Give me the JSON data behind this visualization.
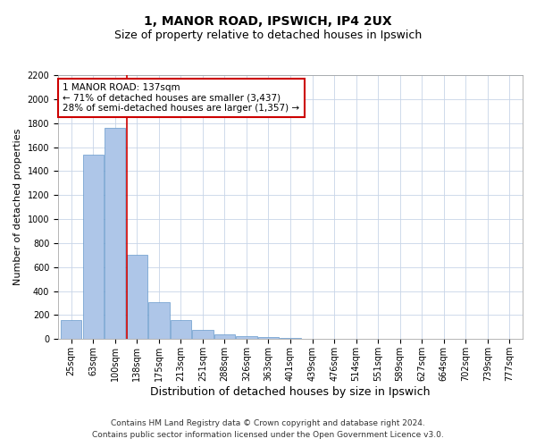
{
  "title_line1": "1, MANOR ROAD, IPSWICH, IP4 2UX",
  "title_line2": "Size of property relative to detached houses in Ipswich",
  "xlabel": "Distribution of detached houses by size in Ipswich",
  "ylabel": "Number of detached properties",
  "categories": [
    "25sqm",
    "63sqm",
    "100sqm",
    "138sqm",
    "175sqm",
    "213sqm",
    "251sqm",
    "288sqm",
    "326sqm",
    "363sqm",
    "401sqm",
    "439sqm",
    "476sqm",
    "514sqm",
    "551sqm",
    "589sqm",
    "627sqm",
    "664sqm",
    "702sqm",
    "739sqm",
    "777sqm"
  ],
  "values": [
    160,
    1540,
    1760,
    700,
    310,
    160,
    80,
    42,
    25,
    20,
    10,
    5,
    3,
    2,
    1,
    1,
    1,
    0,
    0,
    0,
    0
  ],
  "bar_color": "#aec6e8",
  "bar_edge_color": "#6699cc",
  "vline_x_idx": 3,
  "vline_color": "#cc0000",
  "annotation_text": "1 MANOR ROAD: 137sqm\n← 71% of detached houses are smaller (3,437)\n28% of semi-detached houses are larger (1,357) →",
  "annotation_box_color": "#ffffff",
  "annotation_box_edge": "#cc0000",
  "ylim": [
    0,
    2200
  ],
  "yticks": [
    0,
    200,
    400,
    600,
    800,
    1000,
    1200,
    1400,
    1600,
    1800,
    2000,
    2200
  ],
  "footnote1": "Contains HM Land Registry data © Crown copyright and database right 2024.",
  "footnote2": "Contains public sector information licensed under the Open Government Licence v3.0.",
  "bg_color": "#ffffff",
  "grid_color": "#c8d4e8",
  "title1_fontsize": 10,
  "title2_fontsize": 9,
  "xlabel_fontsize": 9,
  "ylabel_fontsize": 8,
  "tick_fontsize": 7,
  "footnote_fontsize": 6.5,
  "annot_fontsize": 7.5
}
